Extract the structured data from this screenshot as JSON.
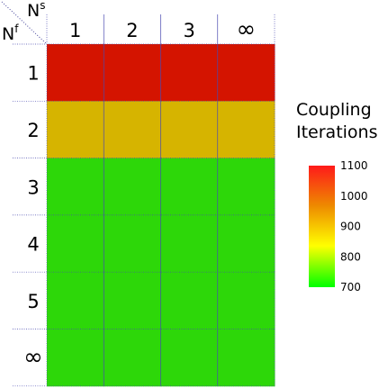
{
  "chart_data": {
    "type": "heatmap",
    "column_axis_label": "N",
    "column_axis_superscript": "s",
    "row_axis_label": "N",
    "row_axis_superscript": "f",
    "columns": [
      "1",
      "2",
      "3",
      "∞"
    ],
    "rows": [
      "1",
      "2",
      "3",
      "4",
      "5",
      "∞"
    ],
    "values": [
      [
        1100,
        1100,
        1100,
        1100
      ],
      [
        940,
        940,
        940,
        940
      ],
      [
        710,
        710,
        710,
        710
      ],
      [
        710,
        710,
        710,
        710
      ],
      [
        710,
        710,
        710,
        710
      ],
      [
        710,
        710,
        710,
        710
      ]
    ],
    "colorbar": {
      "title_lines": [
        "Coupling",
        "Iterations"
      ],
      "min": 700,
      "max": 1100,
      "ticks": [
        "1100",
        "1000",
        "900",
        "800",
        "700"
      ],
      "colors": [
        "#ff1a1a",
        "#ee8a00",
        "#ffff00",
        "#00ff00"
      ]
    },
    "grid": true
  }
}
